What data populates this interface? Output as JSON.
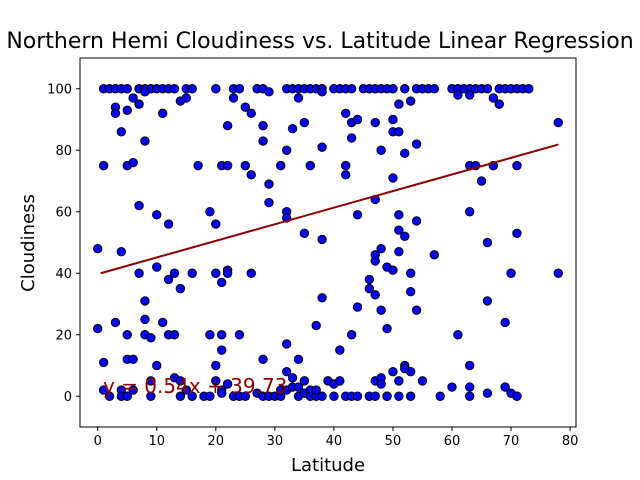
{
  "chart_data": {
    "type": "scatter",
    "title": "Northern Hemi Cloudiness vs. Latitude Linear Regression",
    "xlabel": "Latitude",
    "ylabel": "Cloudiness",
    "xlim": [
      -3,
      81
    ],
    "ylim": [
      -10,
      110
    ],
    "xticks": [
      0,
      10,
      20,
      30,
      40,
      50,
      60,
      70,
      80
    ],
    "yticks": [
      0,
      20,
      40,
      60,
      80,
      100
    ],
    "grid": false,
    "colors": {
      "point_fill": "#0000ff",
      "point_edge": "#000000",
      "line": "#8b0000"
    },
    "regression": {
      "slope": 0.54,
      "intercept": 39.73,
      "x_range": [
        0.5,
        78
      ],
      "equation": "y = 0.54x + 39.73"
    },
    "series": [
      {
        "points": [
          [
            1,
            100
          ],
          [
            2,
            100
          ],
          [
            3,
            100
          ],
          [
            4,
            100
          ],
          [
            5,
            100
          ],
          [
            7,
            100
          ],
          [
            8,
            100
          ],
          [
            9,
            100
          ],
          [
            10,
            100
          ],
          [
            11,
            100
          ],
          [
            12,
            100
          ],
          [
            13,
            100
          ],
          [
            15,
            100
          ],
          [
            16,
            100
          ],
          [
            20,
            100
          ],
          [
            23,
            100
          ],
          [
            24,
            100
          ],
          [
            27,
            100
          ],
          [
            28,
            100
          ],
          [
            32,
            100
          ],
          [
            33,
            100
          ],
          [
            34,
            100
          ],
          [
            35,
            100
          ],
          [
            36,
            100
          ],
          [
            37,
            100
          ],
          [
            38,
            100
          ],
          [
            40,
            100
          ],
          [
            41,
            100
          ],
          [
            42,
            100
          ],
          [
            43,
            100
          ],
          [
            45,
            100
          ],
          [
            46,
            100
          ],
          [
            47,
            100
          ],
          [
            48,
            100
          ],
          [
            49,
            100
          ],
          [
            50,
            100
          ],
          [
            52,
            100
          ],
          [
            54,
            100
          ],
          [
            55,
            100
          ],
          [
            56,
            100
          ],
          [
            57,
            100
          ],
          [
            60,
            100
          ],
          [
            61,
            100
          ],
          [
            62,
            100
          ],
          [
            63,
            100
          ],
          [
            64,
            100
          ],
          [
            65,
            100
          ],
          [
            66,
            100
          ],
          [
            68,
            100
          ],
          [
            69,
            100
          ],
          [
            70,
            100
          ],
          [
            71,
            100
          ],
          [
            72,
            100
          ],
          [
            73,
            100
          ],
          [
            3,
            94
          ],
          [
            3,
            92
          ],
          [
            5,
            93
          ],
          [
            6,
            97
          ],
          [
            7,
            95
          ],
          [
            8,
            99
          ],
          [
            11,
            92
          ],
          [
            14,
            96
          ],
          [
            15,
            97
          ],
          [
            23,
            97
          ],
          [
            25,
            94
          ],
          [
            26,
            92
          ],
          [
            29,
            99
          ],
          [
            34,
            97
          ],
          [
            38,
            99
          ],
          [
            42,
            92
          ],
          [
            43,
            89
          ],
          [
            44,
            90
          ],
          [
            47,
            89
          ],
          [
            50,
            90
          ],
          [
            51,
            95
          ],
          [
            53,
            96
          ],
          [
            61,
            98
          ],
          [
            63,
            98
          ],
          [
            67,
            97
          ],
          [
            68,
            95
          ],
          [
            78,
            89
          ],
          [
            4,
            86
          ],
          [
            8,
            83
          ],
          [
            22,
            88
          ],
          [
            28,
            88
          ],
          [
            28,
            83
          ],
          [
            32,
            80
          ],
          [
            33,
            87
          ],
          [
            35,
            89
          ],
          [
            38,
            81
          ],
          [
            43,
            84
          ],
          [
            48,
            80
          ],
          [
            50,
            86
          ],
          [
            51,
            86
          ],
          [
            52,
            79
          ],
          [
            54,
            82
          ],
          [
            1,
            75
          ],
          [
            5,
            75
          ],
          [
            6,
            76
          ],
          [
            17,
            75
          ],
          [
            21,
            75
          ],
          [
            22,
            75
          ],
          [
            25,
            75
          ],
          [
            26,
            72
          ],
          [
            29,
            69
          ],
          [
            31,
            75
          ],
          [
            36,
            75
          ],
          [
            42,
            75
          ],
          [
            42,
            72
          ],
          [
            50,
            71
          ],
          [
            63,
            75
          ],
          [
            64,
            75
          ],
          [
            65,
            70
          ],
          [
            67,
            75
          ],
          [
            71,
            75
          ],
          [
            7,
            62
          ],
          [
            10,
            59
          ],
          [
            12,
            56
          ],
          [
            19,
            60
          ],
          [
            20,
            56
          ],
          [
            29,
            63
          ],
          [
            32,
            60
          ],
          [
            32,
            58
          ],
          [
            44,
            59
          ],
          [
            47,
            64
          ],
          [
            51,
            59
          ],
          [
            51,
            54
          ],
          [
            52,
            52
          ],
          [
            54,
            57
          ],
          [
            63,
            60
          ],
          [
            0,
            48
          ],
          [
            4,
            47
          ],
          [
            7,
            40
          ],
          [
            10,
            42
          ],
          [
            12,
            38
          ],
          [
            13,
            40
          ],
          [
            14,
            35
          ],
          [
            16,
            40
          ],
          [
            20,
            40
          ],
          [
            21,
            37
          ],
          [
            22,
            41
          ],
          [
            22,
            40
          ],
          [
            26,
            40
          ],
          [
            35,
            53
          ],
          [
            38,
            51
          ],
          [
            46,
            38
          ],
          [
            47,
            44
          ],
          [
            47,
            46
          ],
          [
            48,
            48
          ],
          [
            49,
            42
          ],
          [
            50,
            41
          ],
          [
            51,
            47
          ],
          [
            53,
            40
          ],
          [
            53,
            34
          ],
          [
            54,
            28
          ],
          [
            57,
            46
          ],
          [
            66,
            50
          ],
          [
            70,
            40
          ],
          [
            71,
            53
          ],
          [
            78,
            40
          ],
          [
            0,
            22
          ],
          [
            1,
            11
          ],
          [
            3,
            24
          ],
          [
            5,
            20
          ],
          [
            5,
            12
          ],
          [
            6,
            12
          ],
          [
            8,
            31
          ],
          [
            8,
            25
          ],
          [
            8,
            20
          ],
          [
            9,
            19
          ],
          [
            10,
            10
          ],
          [
            11,
            24
          ],
          [
            12,
            20
          ],
          [
            13,
            20
          ],
          [
            19,
            20
          ],
          [
            20,
            10
          ],
          [
            21,
            20
          ],
          [
            21,
            15
          ],
          [
            24,
            20
          ],
          [
            28,
            12
          ],
          [
            32,
            17
          ],
          [
            34,
            12
          ],
          [
            37,
            23
          ],
          [
            38,
            32
          ],
          [
            41,
            15
          ],
          [
            43,
            20
          ],
          [
            44,
            29
          ],
          [
            46,
            35
          ],
          [
            47,
            33
          ],
          [
            48,
            28
          ],
          [
            49,
            22
          ],
          [
            50,
            8
          ],
          [
            52,
            10
          ],
          [
            53,
            8
          ],
          [
            61,
            20
          ],
          [
            63,
            10
          ],
          [
            66,
            31
          ],
          [
            69,
            24
          ],
          [
            1,
            2
          ],
          [
            2,
            0
          ],
          [
            4,
            2
          ],
          [
            4,
            0
          ],
          [
            5,
            0
          ],
          [
            6,
            2
          ],
          [
            9,
            0
          ],
          [
            9,
            5
          ],
          [
            13,
            6
          ],
          [
            14,
            5
          ],
          [
            14,
            0
          ],
          [
            15,
            2
          ],
          [
            16,
            0
          ],
          [
            18,
            0
          ],
          [
            19,
            0
          ],
          [
            20,
            5
          ],
          [
            21,
            2
          ],
          [
            21,
            1
          ],
          [
            22,
            4
          ],
          [
            23,
            0
          ],
          [
            24,
            0
          ],
          [
            25,
            0
          ],
          [
            27,
            1
          ],
          [
            28,
            0
          ],
          [
            29,
            0
          ],
          [
            30,
            0
          ],
          [
            31,
            0
          ],
          [
            31,
            2
          ],
          [
            32,
            2
          ],
          [
            32,
            8
          ],
          [
            33,
            3
          ],
          [
            33,
            6
          ],
          [
            34,
            3
          ],
          [
            34,
            0
          ],
          [
            35,
            5
          ],
          [
            35,
            1
          ],
          [
            36,
            2
          ],
          [
            36,
            0
          ],
          [
            37,
            0
          ],
          [
            37,
            2
          ],
          [
            38,
            0
          ],
          [
            39,
            5
          ],
          [
            40,
            0
          ],
          [
            40,
            4
          ],
          [
            41,
            5
          ],
          [
            42,
            0
          ],
          [
            43,
            0
          ],
          [
            44,
            0
          ],
          [
            46,
            0
          ],
          [
            47,
            0
          ],
          [
            47,
            5
          ],
          [
            48,
            6
          ],
          [
            48,
            4
          ],
          [
            49,
            0
          ],
          [
            49,
            0
          ],
          [
            51,
            0
          ],
          [
            51,
            5
          ],
          [
            52,
            9
          ],
          [
            53,
            0
          ],
          [
            55,
            5
          ],
          [
            58,
            0
          ],
          [
            60,
            3
          ],
          [
            63,
            3
          ],
          [
            63,
            0
          ],
          [
            66,
            1
          ],
          [
            69,
            3
          ],
          [
            70,
            1
          ],
          [
            71,
            0
          ]
        ]
      }
    ]
  }
}
